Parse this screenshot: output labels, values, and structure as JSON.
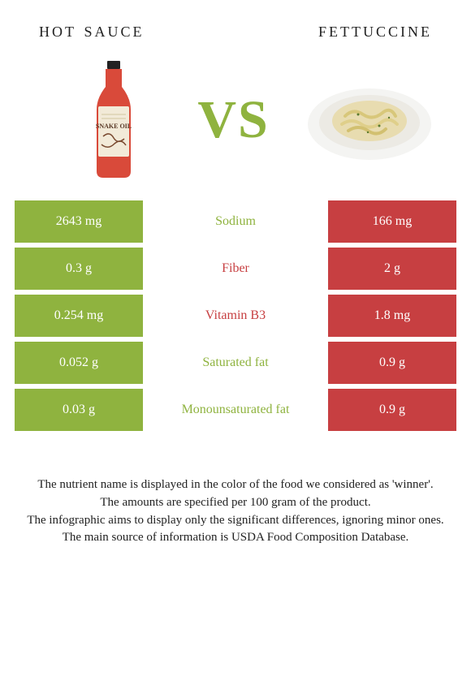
{
  "left_title": "hot sauce",
  "right_title": "fettuccine",
  "vs_label": "VS",
  "colors": {
    "left_bg": "#8fb33f",
    "right_bg": "#c73f41",
    "label_green": "#8fb33f",
    "label_red": "#c73f41",
    "vs": "#8fb33f"
  },
  "rows": [
    {
      "left": "2643 mg",
      "label": "Sodium",
      "right": "166 mg",
      "winner": "left"
    },
    {
      "left": "0.3 g",
      "label": "Fiber",
      "right": "2 g",
      "winner": "right"
    },
    {
      "left": "0.254 mg",
      "label": "Vitamin B3",
      "right": "1.8 mg",
      "winner": "right"
    },
    {
      "left": "0.052 g",
      "label": "Saturated fat",
      "right": "0.9 g",
      "winner": "left"
    },
    {
      "left": "0.03 g",
      "label": "Monounsaturated fat",
      "right": "0.9 g",
      "winner": "left"
    }
  ],
  "footer_lines": [
    "The nutrient name is displayed in the color of the food we considered as 'winner'.",
    "The amounts are specified per 100 gram of the product.",
    "The infographic aims to display only the significant differences, ignoring minor ones.",
    "The main source of information is USDA Food Composition Database."
  ]
}
